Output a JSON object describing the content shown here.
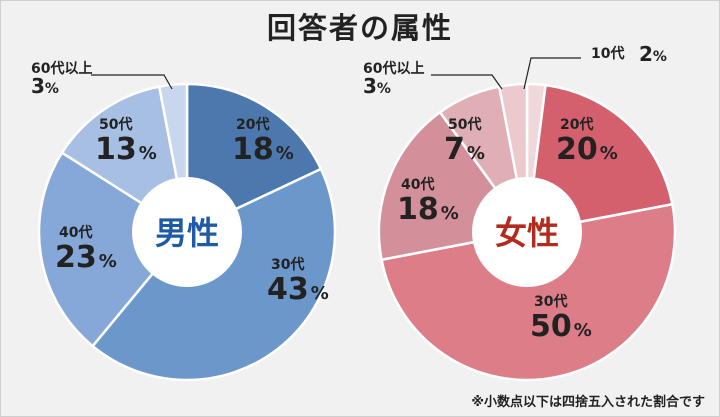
{
  "title": "回答者の属性",
  "note": "※小数点以下は四捨五入された割合です",
  "chart_data": [
    {
      "type": "pie",
      "center_label": "男性",
      "center_color": "#1f5aa6",
      "categories": [
        "20代",
        "30代",
        "40代",
        "50代",
        "60代以上"
      ],
      "values": [
        18,
        43,
        23,
        13,
        3
      ],
      "unit": "%",
      "colors": [
        "#4d78ad",
        "#6b97cb",
        "#86a8d8",
        "#a7bfe3",
        "#c8d7ee"
      ]
    },
    {
      "type": "pie",
      "center_label": "女性",
      "center_color": "#b22b1e",
      "categories": [
        "10代",
        "20代",
        "30代",
        "40代",
        "50代",
        "60代以上"
      ],
      "values": [
        2,
        20,
        50,
        18,
        7,
        3
      ],
      "unit": "%",
      "colors": [
        "#f0d7da",
        "#d4606e",
        "#dd7d88",
        "#d4909a",
        "#e0afb5",
        "#ecc9cd"
      ]
    }
  ]
}
